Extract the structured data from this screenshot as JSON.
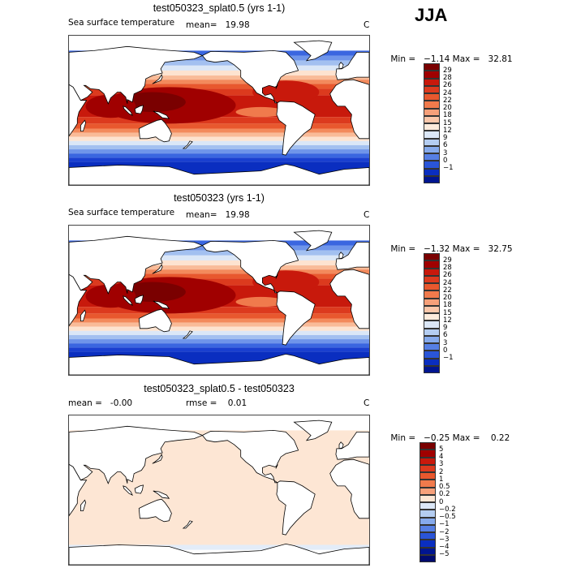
{
  "season": "JJA",
  "panels": [
    {
      "title": "test050323_splat0.5 (yrs 1-1)",
      "left_label": "Sea surface temperature",
      "mean_text": "mean=   19.98",
      "unit": "C",
      "min_text": "Min =   −1.14",
      "max_text": "Max =   32.81",
      "field": "sst"
    },
    {
      "title": "test050323 (yrs 1-1)",
      "left_label": "Sea surface temperature",
      "mean_text": "mean=   19.98",
      "unit": "C",
      "min_text": "Min =   −1.32",
      "max_text": "Max =   32.75",
      "field": "sst"
    },
    {
      "title": "test050323_splat0.5 - test050323",
      "left_label": "mean =   -0.00",
      "mean_text": "rmse =    0.01",
      "unit": "C",
      "min_text": "Min =   −0.25",
      "max_text": "Max =    0.22",
      "field": "diff"
    }
  ],
  "colorbars": {
    "sst": {
      "labels": [
        "29",
        "28",
        "26",
        "24",
        "22",
        "20",
        "18",
        "15",
        "12",
        "9",
        "6",
        "3",
        "0",
        "−1"
      ],
      "colors": [
        "#7a0000",
        "#a00000",
        "#c8190c",
        "#dc3a1e",
        "#e8582e",
        "#f07a4c",
        "#f6a07a",
        "#fbc7aa",
        "#fdebdc",
        "#dbe7f7",
        "#b4cdf1",
        "#86aaec",
        "#567fe4",
        "#2a55d8",
        "#0a2ec0",
        "#001590"
      ]
    },
    "diff": {
      "labels": [
        "5",
        "4",
        "3",
        "2",
        "1",
        "0.5",
        "0.2",
        "0",
        "−0.2",
        "−0.5",
        "−1",
        "−2",
        "−3",
        "−4",
        "−5"
      ],
      "colors": [
        "#7a0000",
        "#a00000",
        "#c8190c",
        "#dc3a1e",
        "#e8582e",
        "#f07a4c",
        "#f6a07a",
        "#fde6d4",
        "#dbe7f7",
        "#b4cdf1",
        "#86aaec",
        "#567fe4",
        "#2a55d8",
        "#0a2ec0",
        "#001590",
        "#000a6e"
      ]
    }
  },
  "chart_data": [
    {
      "type": "heatmap",
      "title": "test050323_splat0.5 (yrs 1-1)",
      "variable": "Sea surface temperature",
      "units": "C",
      "season": "JJA",
      "mean": 19.98,
      "min": -1.14,
      "max": 32.81,
      "contour_levels": [
        -1,
        0,
        3,
        6,
        9,
        12,
        15,
        18,
        20,
        22,
        24,
        26,
        28,
        29
      ]
    },
    {
      "type": "heatmap",
      "title": "test050323 (yrs 1-1)",
      "variable": "Sea surface temperature",
      "units": "C",
      "season": "JJA",
      "mean": 19.98,
      "min": -1.32,
      "max": 32.75,
      "contour_levels": [
        -1,
        0,
        3,
        6,
        9,
        12,
        15,
        18,
        20,
        22,
        24,
        26,
        28,
        29
      ]
    },
    {
      "type": "heatmap",
      "title": "test050323_splat0.5 - test050323",
      "units": "C",
      "mean": -0.0,
      "rmse": 0.01,
      "min": -0.25,
      "max": 0.22,
      "contour_levels": [
        -5,
        -4,
        -3,
        -2,
        -1,
        -0.5,
        -0.2,
        0,
        0.2,
        0.5,
        1,
        2,
        3,
        4,
        5
      ]
    }
  ]
}
